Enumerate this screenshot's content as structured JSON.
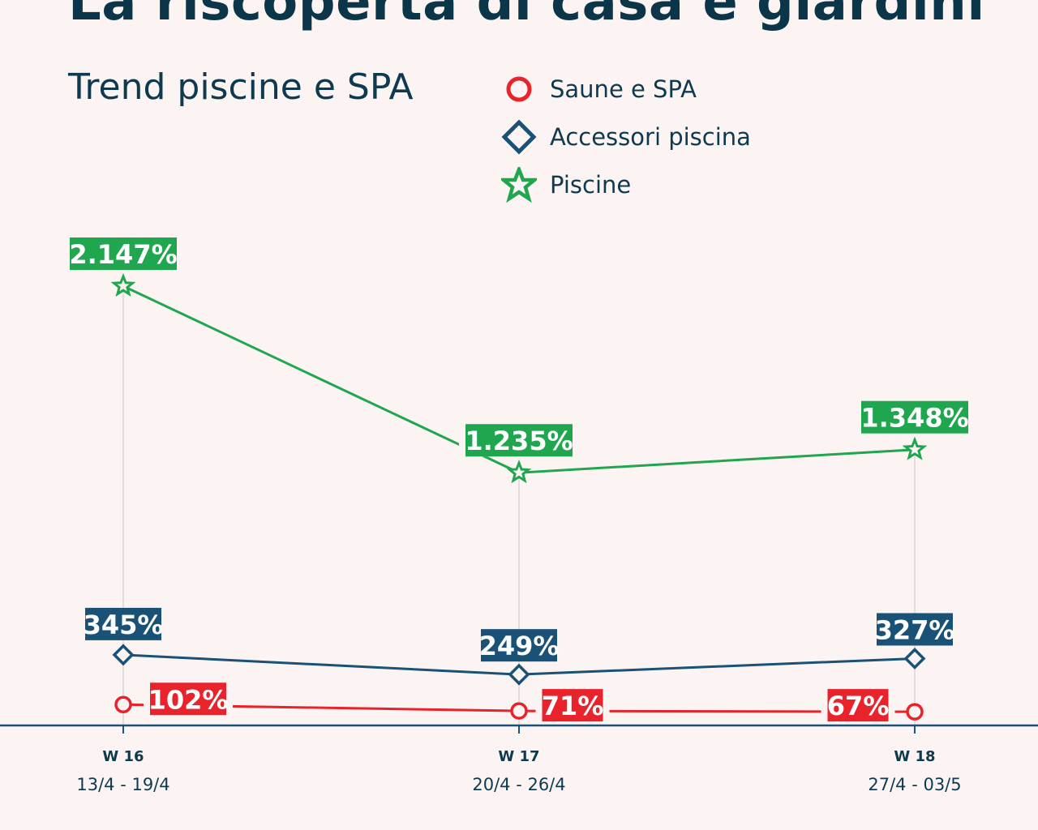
{
  "page": {
    "title": "La riscoperta di casa e giardini",
    "subtitle": "Trend piscine e SPA"
  },
  "legend": [
    {
      "label": "Saune e SPA",
      "icon": "circle-icon",
      "color": "#e8232b"
    },
    {
      "label": "Accessori piscina",
      "icon": "diamond-icon",
      "color": "#1a5277"
    },
    {
      "label": "Piscine",
      "icon": "star-icon",
      "color": "#21a650"
    }
  ],
  "chart_data": {
    "type": "line",
    "title": "Trend piscine e SPA",
    "xlabel": "",
    "ylabel": "",
    "ylim": [
      0,
      2147
    ],
    "grid": false,
    "legend_position": "top-right",
    "categories": [
      "W 16",
      "W 17",
      "W 18"
    ],
    "category_dates": [
      "13/4 - 19/4",
      "20/4 - 26/4",
      "27/4 - 03/5"
    ],
    "series": [
      {
        "name": "Piscine",
        "marker": "star",
        "color": "#21a650",
        "values": [
          2147,
          1235,
          1348
        ],
        "labels": [
          "2.147%",
          "1.235%",
          "1.348%"
        ]
      },
      {
        "name": "Accessori piscina",
        "marker": "diamond",
        "color": "#1a5277",
        "values": [
          345,
          249,
          327
        ],
        "labels": [
          "345%",
          "249%",
          "327%"
        ]
      },
      {
        "name": "Saune e SPA",
        "marker": "circle",
        "color": "#e8232b",
        "values": [
          102,
          71,
          67
        ],
        "labels": [
          "102%",
          "71%",
          "67%"
        ]
      }
    ]
  }
}
